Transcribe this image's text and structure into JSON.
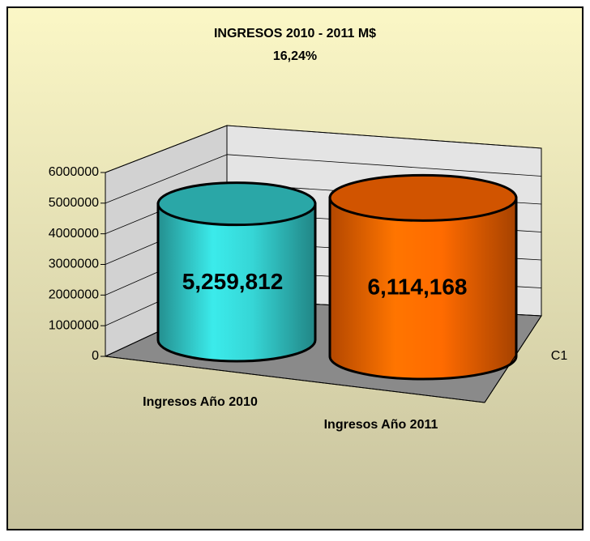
{
  "chart_data": {
    "type": "bar",
    "title": "INGRESOS 2010 - 2011 M$",
    "subtitle": "16,24%",
    "categories": [
      "Ingresos Año 2010",
      "Ingresos Año 2011"
    ],
    "series": [
      {
        "name": "C1",
        "values": [
          5259812,
          6114168
        ],
        "value_labels": [
          "5,259,812",
          "6,114,168"
        ]
      }
    ],
    "colors": [
      "#33cccc",
      "#ff6600"
    ],
    "ylim": [
      0,
      6000000
    ],
    "yticks": [
      0,
      1000000,
      2000000,
      3000000,
      4000000,
      5000000,
      6000000
    ],
    "grid": true
  }
}
